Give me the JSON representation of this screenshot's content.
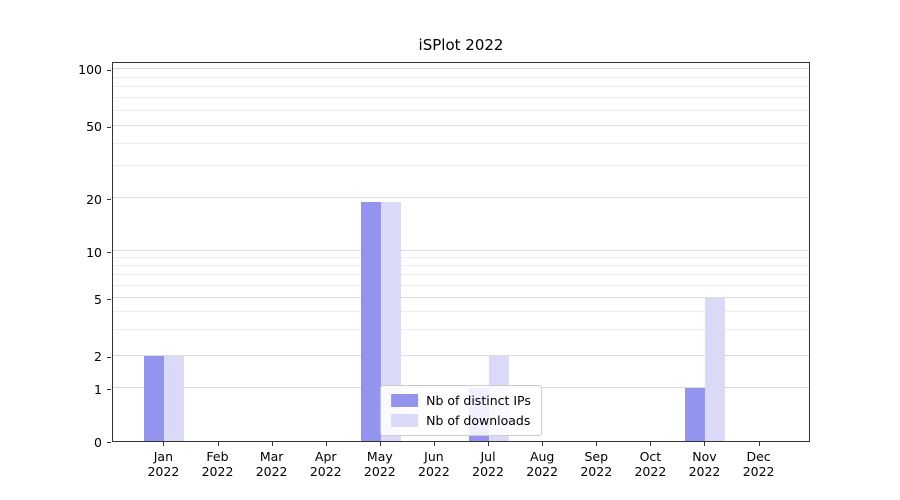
{
  "chart_data": {
    "type": "bar",
    "title": "iSPlot 2022",
    "categories": [
      "Jan 2022",
      "Feb 2022",
      "Mar 2022",
      "Apr 2022",
      "May 2022",
      "Jun 2022",
      "Jul 2022",
      "Aug 2022",
      "Sep 2022",
      "Oct 2022",
      "Nov 2022",
      "Dec 2022"
    ],
    "series": [
      {
        "name": "Nb of distinct IPs",
        "color": "#9394ee",
        "values": [
          2,
          0,
          0,
          0,
          19,
          0,
          1,
          0,
          0,
          0,
          1,
          0
        ]
      },
      {
        "name": "Nb of downloads",
        "color": "#dadaf8",
        "values": [
          2,
          0,
          0,
          0,
          19,
          0,
          2,
          0,
          0,
          0,
          5,
          0
        ]
      }
    ],
    "yscale": "symlog",
    "yticks": [
      0,
      1,
      2,
      5,
      10,
      20,
      50,
      100
    ],
    "ylim": [
      0,
      110
    ],
    "xlabel": "",
    "ylabel": "",
    "grid": "horizontal",
    "legend_position": "lower center"
  }
}
